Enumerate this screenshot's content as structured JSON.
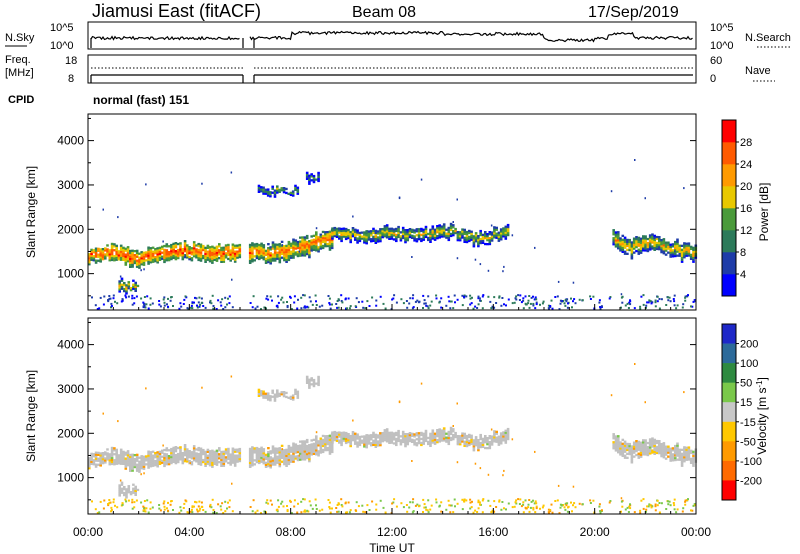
{
  "header": {
    "radar": "Jiamusi East (fitACF)",
    "beam": "Beam 08",
    "date": "17/Sep/2019"
  },
  "noise_panel": {
    "left_label": "N.Sky",
    "left_ticks": [
      "10^5",
      "10^0"
    ],
    "right_ticks": [
      "10^5",
      "10^0"
    ],
    "right_label": "N.Search"
  },
  "freq_panel": {
    "left_label_line1": "Freq.",
    "left_label_line2": "[MHz]",
    "left_ticks": [
      "18",
      "8"
    ],
    "right_ticks": [
      "60",
      "0"
    ],
    "right_label": "Nave"
  },
  "cpid": {
    "label": "CPID",
    "value": "normal (fast) 151"
  },
  "colors": {
    "power_scale": [
      "#0000ff",
      "#1e3ca8",
      "#2c7a5a",
      "#4a9a3a",
      "#e8c800",
      "#ff9a00",
      "#ff5a00",
      "#ff0000"
    ],
    "velocity_scale": [
      "#1e28c8",
      "#2c6a9a",
      "#2e8a40",
      "#7ac84a",
      "#c8c8c8",
      "#ffc800",
      "#ff9a00",
      "#ff6a00",
      "#ff0000"
    ],
    "ground_scatter": "#c0c0c0"
  },
  "chart_data": [
    {
      "type": "heatmap",
      "title": "Power",
      "xlabel": "Time UT",
      "ylabel": "Slant Range [km]",
      "x_ticks": [
        "00:00",
        "04:00",
        "08:00",
        "12:00",
        "16:00",
        "20:00",
        "00:00"
      ],
      "xlim_hours": [
        0,
        24
      ],
      "y_ticks": [
        1000,
        2000,
        3000,
        4000
      ],
      "ylim": [
        180,
        4600
      ],
      "colorbar": {
        "label": "Power [dB]",
        "ticks": [
          4,
          8,
          12,
          16,
          20,
          24,
          28
        ],
        "range": [
          0,
          32
        ]
      },
      "data_gaps_hours": [
        [
          6.0,
          6.35
        ]
      ],
      "bands": [
        {
          "start_hour": 0.0,
          "end_hour": 6.0,
          "center_km": [
            1400,
            1450,
            1300,
            1450,
            1500,
            1450,
            1450
          ],
          "width_km": 330,
          "power_db": 20
        },
        {
          "start_hour": 6.35,
          "end_hour": 9.6,
          "center_km": [
            1450,
            1450,
            1600,
            1800
          ],
          "width_km": 380,
          "power_db": 18
        },
        {
          "start_hour": 9.6,
          "end_hour": 16.6,
          "center_km": [
            1950,
            1850,
            1900,
            1850,
            1950,
            1750,
            1950
          ],
          "width_km": 260,
          "power_db": 12
        },
        {
          "start_hour": 20.7,
          "end_hour": 24.0,
          "center_km": [
            1800,
            1550,
            1700,
            1600,
            1500,
            1450
          ],
          "width_km": 320,
          "power_db": 14
        }
      ],
      "isolated_features": [
        {
          "start_hour": 6.7,
          "end_hour": 8.3,
          "center_km": 2850,
          "width_km": 150,
          "power_db": 8
        },
        {
          "start_hour": 8.6,
          "end_hour": 9.1,
          "center_km": 3150,
          "width_km": 180,
          "power_db": 6
        },
        {
          "start_hour": 1.2,
          "end_hour": 2.0,
          "center_km": 700,
          "width_km": 200,
          "power_db": 14
        }
      ]
    },
    {
      "type": "heatmap",
      "title": "Velocity",
      "xlabel": "Time UT",
      "ylabel": "Slant Range [km]",
      "x_ticks": [
        "00:00",
        "04:00",
        "08:00",
        "12:00",
        "16:00",
        "20:00",
        "00:00"
      ],
      "xlim_hours": [
        0,
        24
      ],
      "y_ticks": [
        1000,
        2000,
        3000,
        4000
      ],
      "ylim": [
        180,
        4600
      ],
      "colorbar": {
        "label": "Velocity [m s^-1]",
        "ticks": [
          200,
          100,
          50,
          15,
          -15,
          -50,
          -100,
          -200
        ]
      },
      "data_gaps_hours": [
        [
          6.0,
          6.35
        ]
      ],
      "dominant_value_ms": 0,
      "notes_visible": "ground scatter grey"
    }
  ]
}
